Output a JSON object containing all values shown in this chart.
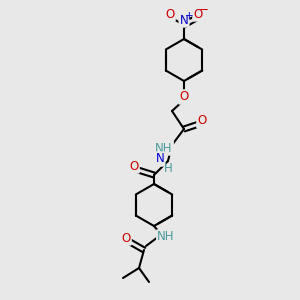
{
  "bg_color": "#e8e8e8",
  "bond_color": "#000000",
  "bond_width": 1.5,
  "atom_colors": {
    "C": "#000000",
    "H": "#4a9a9a",
    "N": "#0000cc",
    "O": "#cc0000",
    "N+": "#0000cc",
    "O-": "#cc0000"
  },
  "font_size": 8.5,
  "figsize": [
    3.0,
    3.0
  ],
  "dpi": 100
}
